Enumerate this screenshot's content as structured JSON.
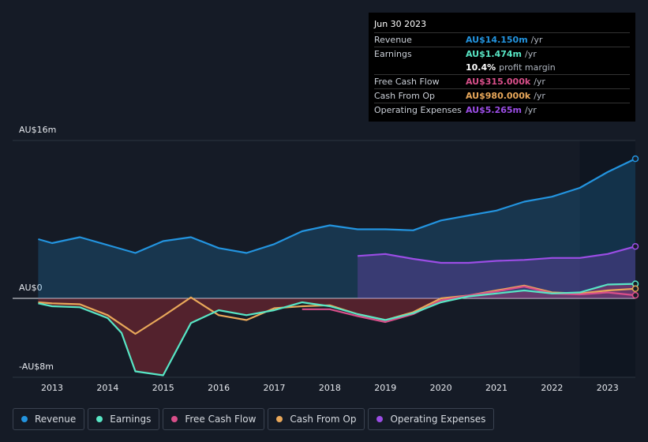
{
  "chart_data": {
    "type": "line",
    "xlim": [
      2012.29,
      2023.5
    ],
    "xticks": [
      2013,
      2014,
      2015,
      2016,
      2017,
      2018,
      2019,
      2020,
      2021,
      2022,
      2023
    ],
    "ylim": [
      -8,
      16
    ],
    "yticks": [
      {
        "value": 16,
        "label": "AU$16m"
      },
      {
        "value": 0,
        "label": "AU$0"
      },
      {
        "value": -8,
        "label": "-AU$8m"
      }
    ],
    "series": [
      {
        "name": "Revenue",
        "color": "#2394df",
        "x": [
          2012.75,
          2013,
          2013.5,
          2014,
          2014.5,
          2015,
          2015.5,
          2016,
          2016.5,
          2017,
          2017.5,
          2018,
          2018.5,
          2019,
          2019.5,
          2020,
          2020.5,
          2021,
          2021.5,
          2022,
          2022.5,
          2023,
          2023.5
        ],
        "values": [
          6.0,
          5.6,
          6.2,
          5.4,
          4.6,
          5.8,
          6.2,
          5.1,
          4.6,
          5.5,
          6.8,
          7.4,
          7.0,
          7.0,
          6.9,
          7.9,
          8.4,
          8.9,
          9.8,
          10.3,
          11.2,
          12.8,
          14.15
        ]
      },
      {
        "name": "Earnings",
        "color": "#58e6c5",
        "x": [
          2012.75,
          2013,
          2013.5,
          2014,
          2014.25,
          2014.5,
          2015,
          2015.5,
          2016,
          2016.5,
          2017,
          2017.5,
          2018,
          2018.5,
          2019,
          2019.5,
          2020,
          2020.5,
          2021,
          2021.5,
          2022,
          2022.5,
          2023,
          2023.5
        ],
        "values": [
          -0.5,
          -0.8,
          -0.9,
          -2.0,
          -3.5,
          -7.4,
          -7.8,
          -2.5,
          -1.2,
          -1.7,
          -1.2,
          -0.4,
          -0.8,
          -1.6,
          -2.2,
          -1.5,
          -0.4,
          0.2,
          0.5,
          0.8,
          0.5,
          0.6,
          1.4,
          1.474
        ]
      },
      {
        "name": "Free Cash Flow",
        "color": "#d94f8a",
        "x": [
          2017.5,
          2018,
          2018.5,
          2019,
          2019.5,
          2020,
          2020.5,
          2021,
          2021.5,
          2022,
          2022.5,
          2023,
          2023.5
        ],
        "values": [
          -1.1,
          -1.1,
          -1.8,
          -2.4,
          -1.6,
          -0.2,
          0.3,
          0.7,
          1.2,
          0.5,
          0.4,
          0.6,
          0.315
        ]
      },
      {
        "name": "Cash From Op",
        "color": "#e9a85a",
        "x": [
          2012.75,
          2013,
          2013.5,
          2014,
          2014.5,
          2015,
          2015.5,
          2016,
          2016.5,
          2017,
          2017.5,
          2018,
          2018.5,
          2019,
          2019.5,
          2020,
          2020.5,
          2021,
          2021.5,
          2022,
          2022.5,
          2023,
          2023.5
        ],
        "values": [
          -0.4,
          -0.5,
          -0.6,
          -1.7,
          -3.6,
          -1.8,
          0.1,
          -1.7,
          -2.2,
          -1.0,
          -0.8,
          -0.7,
          -1.6,
          -2.2,
          -1.4,
          0.0,
          0.3,
          0.8,
          1.3,
          0.6,
          0.5,
          0.8,
          0.98
        ]
      },
      {
        "name": "Operating Expenses",
        "color": "#9b4de5",
        "x": [
          2018.5,
          2019,
          2019.5,
          2020,
          2020.5,
          2021,
          2021.5,
          2022,
          2022.5,
          2023,
          2023.5
        ],
        "values": [
          4.3,
          4.5,
          4.0,
          3.6,
          3.6,
          3.8,
          3.9,
          4.1,
          4.1,
          4.5,
          5.265
        ]
      }
    ],
    "tooltip": {
      "date": "Jun 30 2023",
      "rows": [
        {
          "label": "Revenue",
          "value": "AU$14.150m",
          "unit": "/yr"
        },
        {
          "label": "Earnings",
          "value": "AU$1.474m",
          "unit": "/yr"
        },
        {
          "value": "10.4%",
          "unit": "profit margin"
        },
        {
          "label": "Free Cash Flow",
          "value": "AU$315.000k",
          "unit": "/yr"
        },
        {
          "label": "Cash From Op",
          "value": "AU$980.000k",
          "unit": "/yr"
        },
        {
          "label": "Operating Expenses",
          "value": "AU$5.265m",
          "unit": "/yr"
        }
      ]
    }
  }
}
